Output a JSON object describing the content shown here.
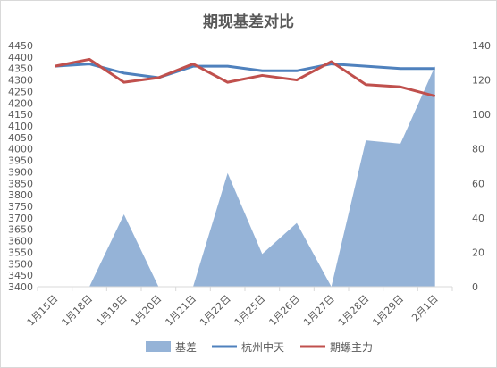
{
  "chart_data": {
    "type": "line+area",
    "title": "期现基差对比",
    "categories": [
      "1月15日",
      "1月18日",
      "1月19日",
      "1月20日",
      "1月21日",
      "1月22日",
      "1月25日",
      "1月26日",
      "1月27日",
      "1月28日",
      "1月29日",
      "2月1日"
    ],
    "y_left": {
      "min": 3400,
      "max": 4450,
      "step": 50
    },
    "y_right": {
      "min": 0,
      "max": 140,
      "step": 20
    },
    "series": [
      {
        "name": "基差",
        "type": "area",
        "axis": "right",
        "color": "#95b3d7",
        "values": [
          0,
          0,
          42,
          0,
          0,
          66,
          19,
          37,
          0,
          85,
          83,
          128
        ]
      },
      {
        "name": "杭州中天",
        "type": "line",
        "axis": "left",
        "color": "#4f81bd",
        "values": [
          4360,
          4370,
          4330,
          4310,
          4360,
          4360,
          4340,
          4340,
          4370,
          4360,
          4350,
          4350
        ]
      },
      {
        "name": "期螺主力",
        "type": "line",
        "axis": "left",
        "color": "#c0504d",
        "values": [
          4360,
          4390,
          4290,
          4310,
          4370,
          4290,
          4320,
          4300,
          4380,
          4280,
          4270,
          4230
        ]
      }
    ],
    "legend_position": "bottom",
    "grid": false
  }
}
